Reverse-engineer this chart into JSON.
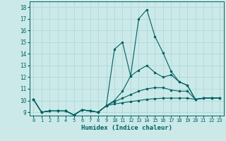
{
  "xlabel": "Humidex (Indice chaleur)",
  "background_color": "#cce9e9",
  "grid_color": "#aad4d4",
  "line_color": "#006060",
  "xlim": [
    -0.5,
    23.5
  ],
  "ylim": [
    8.7,
    18.5
  ],
  "yticks": [
    9,
    10,
    11,
    12,
    13,
    14,
    15,
    16,
    17,
    18
  ],
  "xticks": [
    0,
    1,
    2,
    3,
    4,
    5,
    6,
    7,
    8,
    9,
    10,
    11,
    12,
    13,
    14,
    15,
    16,
    17,
    18,
    19,
    20,
    21,
    22,
    23
  ],
  "lines": [
    {
      "x": [
        0,
        1,
        2,
        3,
        4,
        5,
        6,
        7,
        8,
        9,
        10,
        11,
        12,
        13,
        14,
        15,
        16,
        17,
        18,
        19,
        20,
        21,
        22,
        23
      ],
      "y": [
        10.1,
        9.0,
        9.1,
        9.1,
        9.1,
        8.75,
        9.2,
        9.1,
        9.0,
        9.55,
        14.4,
        15.0,
        12.1,
        17.0,
        17.8,
        15.5,
        14.1,
        12.5,
        11.6,
        11.3,
        10.1,
        10.2,
        10.2,
        10.2
      ]
    },
    {
      "x": [
        0,
        1,
        2,
        3,
        4,
        5,
        6,
        7,
        8,
        9,
        10,
        11,
        12,
        13,
        14,
        15,
        16,
        17,
        18,
        19,
        20,
        21,
        22,
        23
      ],
      "y": [
        10.1,
        9.0,
        9.1,
        9.1,
        9.1,
        8.75,
        9.2,
        9.1,
        9.0,
        9.55,
        10.0,
        10.8,
        12.1,
        12.6,
        13.0,
        12.4,
        12.0,
        12.2,
        11.6,
        11.3,
        10.1,
        10.2,
        10.2,
        10.2
      ]
    },
    {
      "x": [
        0,
        1,
        2,
        3,
        4,
        5,
        6,
        7,
        8,
        9,
        10,
        11,
        12,
        13,
        14,
        15,
        16,
        17,
        18,
        19,
        20,
        21,
        22,
        23
      ],
      "y": [
        10.1,
        9.0,
        9.1,
        9.1,
        9.1,
        8.75,
        9.2,
        9.1,
        9.0,
        9.55,
        9.9,
        10.2,
        10.5,
        10.8,
        11.0,
        11.1,
        11.1,
        10.9,
        10.8,
        10.8,
        10.1,
        10.2,
        10.2,
        10.2
      ]
    },
    {
      "x": [
        0,
        1,
        2,
        3,
        4,
        5,
        6,
        7,
        8,
        9,
        10,
        11,
        12,
        13,
        14,
        15,
        16,
        17,
        18,
        19,
        20,
        21,
        22,
        23
      ],
      "y": [
        10.1,
        9.0,
        9.1,
        9.1,
        9.1,
        8.75,
        9.2,
        9.1,
        9.0,
        9.55,
        9.7,
        9.8,
        9.9,
        10.0,
        10.1,
        10.15,
        10.2,
        10.2,
        10.2,
        10.2,
        10.1,
        10.2,
        10.2,
        10.2
      ]
    }
  ]
}
